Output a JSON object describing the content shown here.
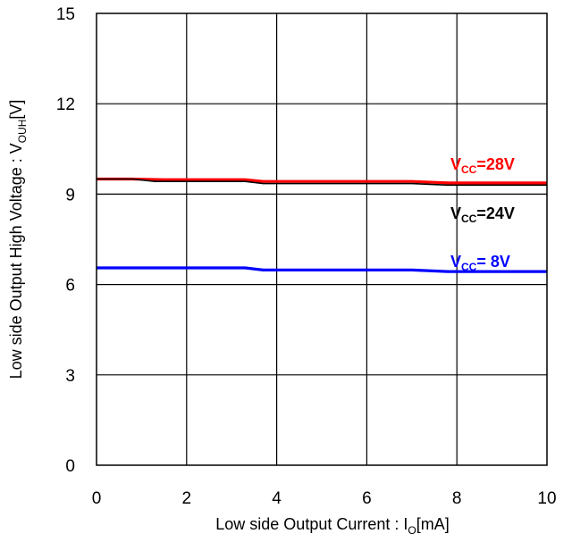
{
  "chart_data": {
    "type": "line",
    "title": "",
    "xlabel": {
      "main": "Low side Output Current : I",
      "sub": "O",
      "unit": "[mA]"
    },
    "ylabel": {
      "main": "Low side Output High Voltage : V",
      "sub": "OUH",
      "unit": "[V]"
    },
    "xlim": [
      0,
      10
    ],
    "ylim": [
      0,
      15
    ],
    "xticks": [
      0,
      2,
      4,
      6,
      8,
      10
    ],
    "yticks": [
      0,
      3,
      6,
      9,
      12,
      15
    ],
    "grid": true,
    "series": [
      {
        "label_main": "V",
        "label_sub": "CC",
        "label_rest": "=28V",
        "color": "#ff0000",
        "x": [
          0,
          0.8,
          1.5,
          3.3,
          3.7,
          7,
          7.8,
          10
        ],
        "y": [
          9.5,
          9.5,
          9.48,
          9.48,
          9.42,
          9.42,
          9.37,
          9.37
        ]
      },
      {
        "label_main": "V",
        "label_sub": "CC",
        "label_rest": "=24V",
        "color": "#000000",
        "x": [
          0,
          0.8,
          1.3,
          3.3,
          3.7,
          7,
          7.8,
          10
        ],
        "y": [
          9.5,
          9.5,
          9.42,
          9.42,
          9.35,
          9.35,
          9.3,
          9.3
        ]
      },
      {
        "label_main": "V",
        "label_sub": "CC",
        "label_rest": "= 8V",
        "color": "#0000ff",
        "x": [
          0,
          3.3,
          3.7,
          7,
          7.8,
          10
        ],
        "y": [
          6.55,
          6.55,
          6.48,
          6.48,
          6.43,
          6.43
        ]
      }
    ]
  }
}
